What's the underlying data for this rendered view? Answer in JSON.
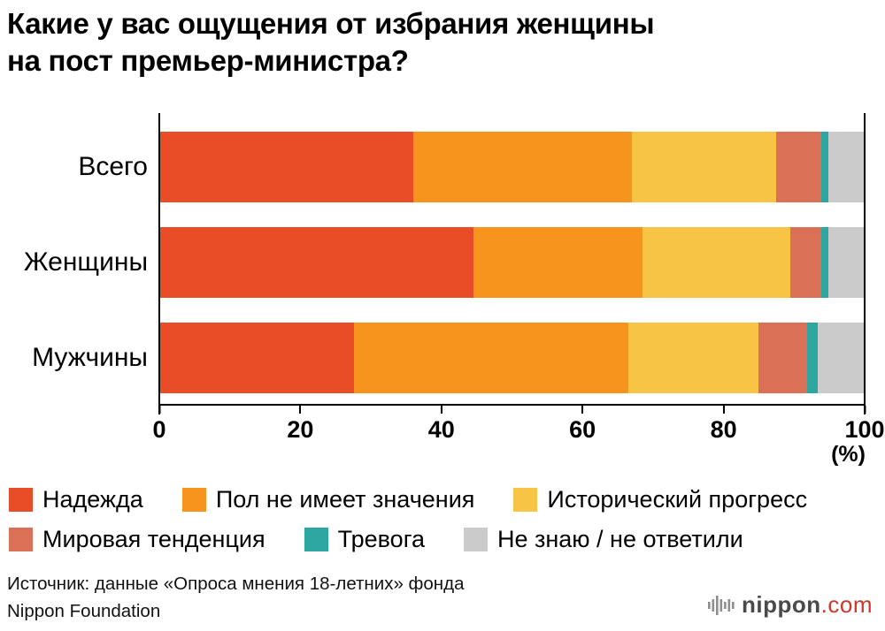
{
  "title": {
    "line1": "Какие у вас ощущения от избрания женщины",
    "line2": "на пост премьер-министра?"
  },
  "chart_data": {
    "type": "bar",
    "orientation": "horizontal",
    "stacked": true,
    "title": "Какие у вас ощущения от избрания женщины на пост премьер-министра?",
    "categories": [
      "Всего",
      "Женщины",
      "Мужчины"
    ],
    "series": [
      {
        "name": "Надежда",
        "color": "#E84D28",
        "values": [
          36,
          44.5,
          27.5
        ]
      },
      {
        "name": "Пол не имеет значения",
        "color": "#F7941E",
        "values": [
          31,
          24,
          39
        ]
      },
      {
        "name": "Исторический прогресс",
        "color": "#F8C445",
        "values": [
          20.5,
          21,
          18.5
        ]
      },
      {
        "name": "Мировая тенденция",
        "color": "#DA7156",
        "values": [
          6.5,
          4.5,
          7
        ]
      },
      {
        "name": "Тревога",
        "color": "#2EA7A1",
        "values": [
          1,
          1,
          1.5
        ]
      },
      {
        "name": "Не знаю / не ответили",
        "color": "#CBCBCB",
        "values": [
          5,
          5,
          6.5
        ]
      }
    ],
    "xlim": [
      0,
      100
    ],
    "xticks": [
      "0",
      "20",
      "40",
      "60",
      "80",
      "100"
    ],
    "x_unit_label": "(%)",
    "grid": false,
    "legend_position": "bottom"
  },
  "source": {
    "line1": "Источник: данные «Опроса мнения 18-летних» фонда",
    "line2": "Nippon Foundation"
  },
  "logo": {
    "name": "nippon",
    "tld": ".com",
    "tld_color": "#C8382C",
    "icon_color": "#8F8F8F"
  }
}
